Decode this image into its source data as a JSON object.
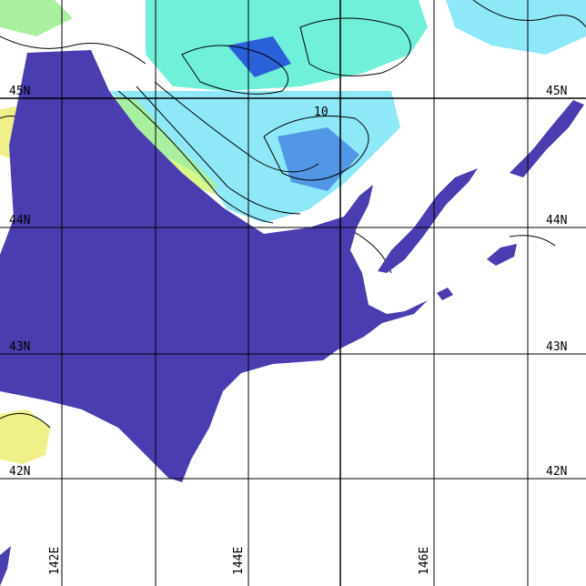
{
  "map": {
    "latitude_labels": [
      "45N",
      "44N",
      "43N",
      "42N"
    ],
    "longitude_labels": [
      "142E",
      "144E",
      "146E"
    ],
    "contour_label": "10",
    "colors": {
      "land": "#4a3db0",
      "cyan_field": "#8ee8f8",
      "aqua_field": "#70f0d8",
      "green_field": "#a8f0a0",
      "yellow_field": "#f0f088",
      "deep_blue": "#2a60d8",
      "grid": "#000000"
    }
  }
}
